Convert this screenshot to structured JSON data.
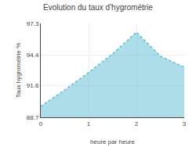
{
  "chart_data": {
    "type": "area",
    "title": "Evolution du taux d'hygrométrie",
    "xlabel": "heure par heure",
    "ylabel": "Taux hygrométrie %",
    "x": [
      0,
      0.5,
      1,
      1.5,
      2,
      2.5,
      3
    ],
    "values": [
      89.7,
      91.2,
      92.8,
      94.5,
      96.5,
      94.3,
      93.3
    ],
    "color": "#5bbcd4",
    "line_style": "dotted",
    "xlim": [
      0,
      3
    ],
    "xticks": [
      0,
      1,
      2,
      3
    ],
    "ylim": [
      88.7,
      97.3
    ],
    "yticks": [
      88.7,
      91.6,
      94.4,
      97.3
    ],
    "grid": true
  }
}
